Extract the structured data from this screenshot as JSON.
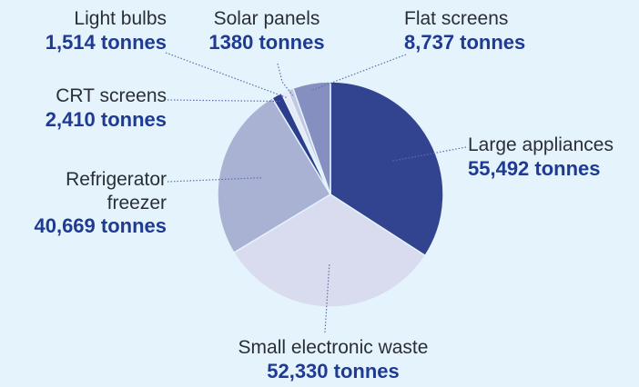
{
  "colors": {
    "background": "#e4f3fc",
    "label_text": "#2a2f36",
    "value_text": "#1f3a93",
    "leader_line": "#5b6fb0"
  },
  "chart_data": {
    "type": "pie",
    "unit": "tonnes",
    "start_angle_deg": 0,
    "direction": "clockwise",
    "slices": [
      {
        "name": "Large appliances",
        "value": 55492,
        "value_label": "55,492 tonnes",
        "color": "#32448f"
      },
      {
        "name": "Small electronic waste",
        "value": 52330,
        "value_label": "52,330 tonnes",
        "color": "#d8dcee"
      },
      {
        "name": "Refrigerator freezer",
        "value": 40669,
        "value_label": "40,669 tonnes",
        "color": "#aab2d4"
      },
      {
        "name": "CRT screens",
        "value": 2410,
        "value_label": "2,410 tonnes",
        "color": "#2b3d8c"
      },
      {
        "name": "Light bulbs",
        "value": 1514,
        "value_label": "1,514 tonnes",
        "color": "#e7eaf5"
      },
      {
        "name": "Solar panels",
        "value": 1380,
        "value_label": "1380 tonnes",
        "color": "#c4c9e1"
      },
      {
        "name": "Flat screens",
        "value": 8737,
        "value_label": "8,737 tonnes",
        "color": "#8590c1"
      }
    ]
  },
  "labels": {
    "large_appliances": {
      "line1": "Large appliances",
      "value": "55,492 tonnes"
    },
    "small_electronic": {
      "line1": "Small electronic waste",
      "value": "52,330 tonnes"
    },
    "refrigerator": {
      "line1": "Refrigerator",
      "line2": "freezer",
      "value": "40,669 tonnes"
    },
    "crt": {
      "line1": "CRT screens",
      "value": "2,410 tonnes"
    },
    "light_bulbs": {
      "line1": "Light bulbs",
      "value": "1,514 tonnes"
    },
    "solar": {
      "line1": "Solar panels",
      "value": "1380 tonnes"
    },
    "flat": {
      "line1": "Flat screens",
      "value": "8,737 tonnes"
    }
  }
}
